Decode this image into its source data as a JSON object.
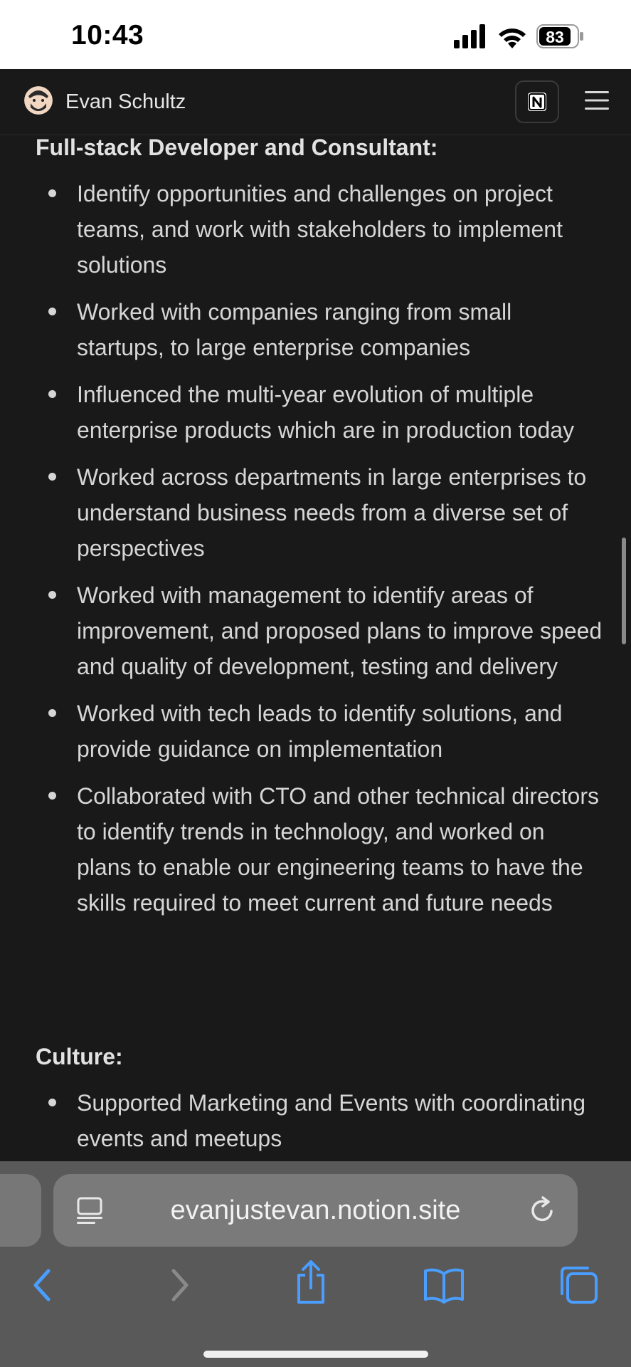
{
  "status_bar": {
    "time": "10:43",
    "battery": "83"
  },
  "header": {
    "name": "Evan Schultz"
  },
  "sections": [
    {
      "title": "Full-stack Developer and Consultant:",
      "bullets": [
        "Identify opportunities and challenges on project teams, and work with stakeholders to implement solutions",
        "Worked with companies ranging from small startups, to large enterprise companies",
        "Influenced the multi-year evolution of multiple enterprise products which are in production today",
        "Worked across departments in large enterprises to understand business needs from a diverse set of perspectives",
        "Worked with management to identify areas of improvement, and proposed plans to improve speed and quality of development, testing and delivery",
        "Worked with tech leads to identify solutions, and provide guidance on implementation",
        "Collaborated with CTO and other technical directors to identify trends in technology, and worked on plans to enable our engineering teams to have the skills required to meet current and future needs"
      ]
    },
    {
      "title": "Culture:",
      "bullets": [
        "Supported Marketing and Events with coordinating events and meetups"
      ]
    }
  ],
  "browser": {
    "url": "evanjustevan.notion.site"
  },
  "icons": {
    "signal": "signal-icon",
    "wifi": "wifi-icon",
    "battery": "battery-icon",
    "notion": "notion-icon",
    "menu": "hamburger-menu-icon",
    "reader": "reader-mode-icon",
    "reload": "reload-icon",
    "back": "back-icon",
    "forward": "forward-icon",
    "share": "share-icon",
    "bookmarks": "bookmarks-icon",
    "tabs": "tabs-icon"
  },
  "colors": {
    "accent": "#4a9eff",
    "background": "#191919",
    "toolbar": "#595959"
  }
}
